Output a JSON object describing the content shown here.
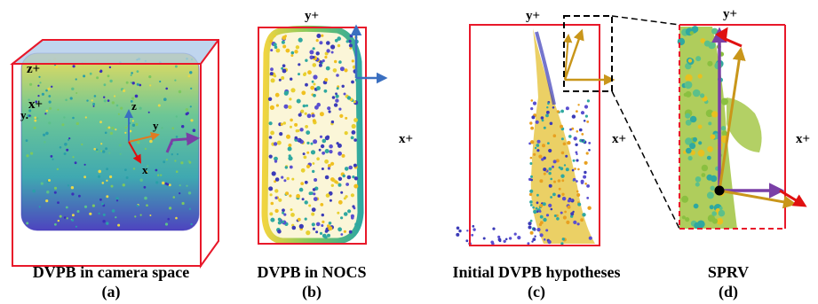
{
  "panels": [
    {
      "caption": "DVPB in camera space",
      "tag": "(a)"
    },
    {
      "caption": "DVPB in NOCS",
      "tag": "(b)"
    },
    {
      "caption": "Initial DVPB hypotheses",
      "tag": "(c)"
    },
    {
      "caption": "SPRV",
      "tag": "(d)"
    }
  ],
  "axis_labels": {
    "z_plus": "z+",
    "x_plus": "x+",
    "y_plus": "y+",
    "y_dot": "y.",
    "z": "z",
    "y": "y",
    "x": "x"
  },
  "colors": {
    "box": "#e8182a",
    "purple": "#7a3fa6",
    "gold": "#c9961a",
    "blue": "#3a6fc0",
    "red_axis": "#e01010",
    "orange_axis": "#e07a20",
    "top_face": "#a9c7e8"
  }
}
